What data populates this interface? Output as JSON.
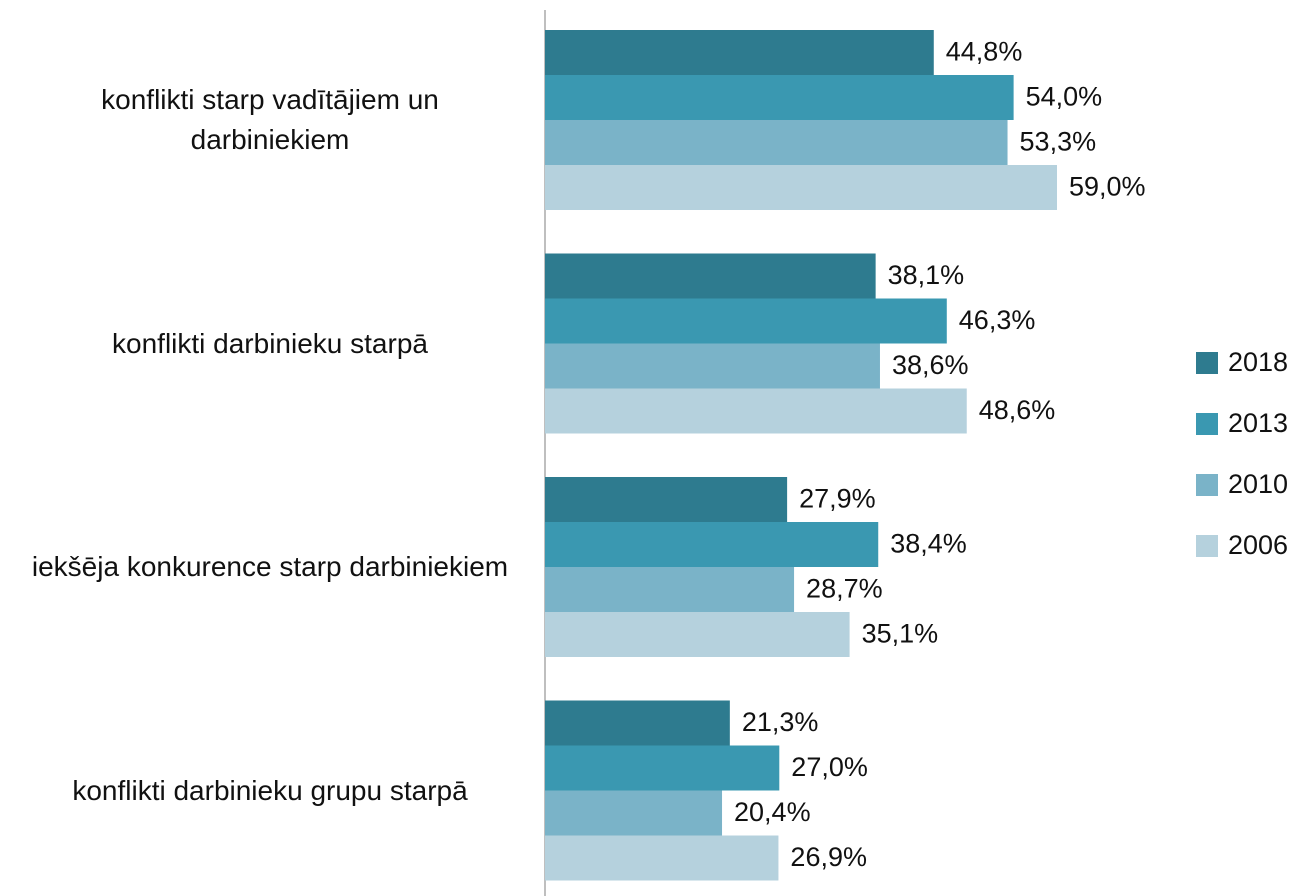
{
  "chart_data": {
    "type": "hbar",
    "categories": [
      "konflikti starp vadītājiem un darbiniekiem",
      "konflikti darbinieku starpā",
      "iekšēja konkurence starp darbiniekiem",
      "konflikti darbinieku grupu starpā"
    ],
    "series": [
      {
        "name": "2018",
        "color": "#2e7b8f",
        "values": [
          44.8,
          38.1,
          27.9,
          21.3
        ],
        "value_labels": [
          "44,8%",
          "38,1%",
          "27,9%",
          "21,3%"
        ]
      },
      {
        "name": "2013",
        "color": "#3a98b1",
        "values": [
          54.0,
          46.3,
          38.4,
          27.0
        ],
        "value_labels": [
          "54,0%",
          "46,3%",
          "38,4%",
          "27,0%"
        ]
      },
      {
        "name": "2010",
        "color": "#7ab3c8",
        "values": [
          53.3,
          38.6,
          28.7,
          20.4
        ],
        "value_labels": [
          "53,3%",
          "38,6%",
          "28,7%",
          "20,4%"
        ]
      },
      {
        "name": "2006",
        "color": "#b5d1dd",
        "values": [
          59.0,
          48.6,
          35.1,
          26.9
        ],
        "value_labels": [
          "59,0%",
          "48,6%",
          "35,1%",
          "26,9%"
        ]
      }
    ],
    "xlim": [
      0,
      70
    ],
    "legend": "right"
  }
}
